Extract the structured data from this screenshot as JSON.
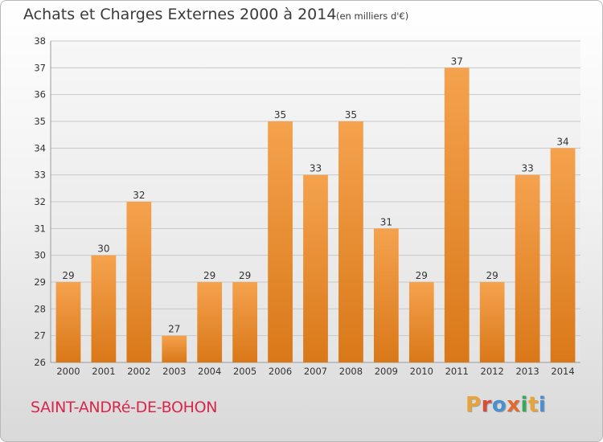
{
  "header": {
    "title": "Achats et Charges Externes 2000 à 2014",
    "unit": "(en milliers d'€)"
  },
  "footer": {
    "commune": "SAINT-ANDRé-DE-BOHON",
    "logo_text": "Proxiti",
    "logo_colors": [
      "#e8a33a",
      "#d84a3a",
      "#4a8fd0",
      "#e06a30",
      "#3aa858",
      "#e8a33a",
      "#4a8fd0"
    ]
  },
  "colors": {
    "bar_top": "#f5a24e",
    "bar_bottom": "#d97818",
    "grid": "#c8c8c8",
    "axis_text": "#333333"
  },
  "chart_data": {
    "type": "bar",
    "title": "Achats et Charges Externes 2000 à 2014",
    "categories": [
      "2000",
      "2001",
      "2002",
      "2003",
      "2004",
      "2005",
      "2006",
      "2007",
      "2008",
      "2009",
      "2010",
      "2011",
      "2012",
      "2013",
      "2014"
    ],
    "values": [
      29,
      30,
      32,
      27,
      29,
      29,
      35,
      33,
      35,
      31,
      29,
      37,
      29,
      33,
      34
    ],
    "ylim": [
      26,
      38
    ],
    "yticks": [
      26,
      27,
      28,
      29,
      30,
      31,
      32,
      33,
      34,
      35,
      36,
      37,
      38
    ],
    "grid": true,
    "data_labels": true,
    "xlabel": "",
    "ylabel": ""
  }
}
